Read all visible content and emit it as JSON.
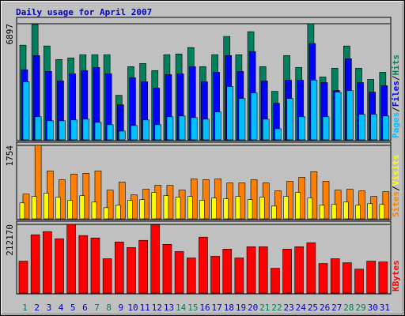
{
  "chart_data": [
    {
      "type": "bar",
      "title": "Daily usage for April 2007",
      "title_color": "#0000c0",
      "ylim": [
        0,
        6897
      ],
      "yticks": [
        6897
      ],
      "legend_separator": "/",
      "series": [
        {
          "name": "Hits",
          "color": "#00805c",
          "values": [
            5622,
            6850,
            5574,
            4771,
            4866,
            5055,
            5055,
            5055,
            2645,
            4346,
            4535,
            4110,
            5055,
            5102,
            5480,
            4346,
            5055,
            6141,
            5055,
            6425,
            4346,
            2882,
            5007,
            4299,
            6897,
            3732,
            4252,
            5574,
            4252,
            3590,
            4015
          ]
        },
        {
          "name": "Files",
          "color": "#0000ff",
          "values": [
            4157,
            5007,
            4063,
            3496,
            3921,
            4110,
            4299,
            3921,
            2079,
            3685,
            3449,
            3071,
            3874,
            3921,
            4346,
            3449,
            4015,
            5007,
            4063,
            5244,
            3496,
            2173,
            3543,
            3543,
            5716,
            3401,
            2929,
            4818,
            3401,
            2834,
            3212
          ]
        },
        {
          "name": "Pages",
          "color": "#00c0ff",
          "values": [
            3449,
            1370,
            1134,
            1134,
            1181,
            1228,
            1039,
            898,
            520,
            850,
            1181,
            898,
            1370,
            1417,
            1323,
            1228,
            1653,
            3165,
            2456,
            2787,
            1228,
            661,
            2456,
            1370,
            3543,
            1370,
            2834,
            2929,
            1512,
            1512,
            1417
          ]
        }
      ]
    },
    {
      "type": "bar",
      "ylim": [
        0,
        1754
      ],
      "yticks": [
        1754
      ],
      "legend_separator": "/",
      "series": [
        {
          "name": "Visits",
          "color": "#ff8000",
          "legend_color": "#ffff00",
          "values": [
            591,
            1754,
            1144,
            934,
            1068,
            1087,
            1144,
            687,
            877,
            572,
            706,
            801,
            801,
            687,
            953,
            934,
            953,
            858,
            858,
            934,
            858,
            667,
            896,
            992,
            1125,
            896,
            687,
            706,
            667,
            534,
            648
          ]
        },
        {
          "name": "Sites",
          "color": "#ffff00",
          "legend_color": "#ff8000",
          "values": [
            381,
            534,
            610,
            515,
            439,
            553,
            400,
            267,
            324,
            439,
            458,
            629,
            553,
            515,
            534,
            439,
            496,
            477,
            534,
            458,
            515,
            305,
            534,
            629,
            496,
            324,
            343,
            400,
            324,
            362,
            343
          ]
        }
      ]
    },
    {
      "type": "bar",
      "ylim": [
        0,
        212170
      ],
      "yticks": [
        212170
      ],
      "categories": [
        "1",
        "2",
        "3",
        "4",
        "5",
        "6",
        "7",
        "8",
        "9",
        "10",
        "11",
        "12",
        "13",
        "14",
        "15",
        "16",
        "17",
        "18",
        "19",
        "20",
        "21",
        "22",
        "23",
        "24",
        "25",
        "26",
        "27",
        "28",
        "29",
        "30",
        "31"
      ],
      "category_colors": [
        "#00805c",
        "#0000c0",
        "#0000c0",
        "#0000c0",
        "#0000c0",
        "#0000c0",
        "#00805c",
        "#00805c",
        "#0000c0",
        "#0000c0",
        "#0000c0",
        "#0000c0",
        "#0000c0",
        "#00805c",
        "#00805c",
        "#0000c0",
        "#0000c0",
        "#0000c0",
        "#0000c0",
        "#0000c0",
        "#00805c",
        "#00805c",
        "#0000c0",
        "#0000c0",
        "#0000c0",
        "#0000c0",
        "#0000c0",
        "#00805c",
        "#00805c",
        "#0000c0",
        "#0000c0"
      ],
      "series": [
        {
          "name": "KBytes",
          "color": "#ff0000",
          "values": [
            98680,
            180091,
            189959,
            167756,
            212170,
            177624,
            170223,
            106081,
            157888,
            140619,
            162822,
            211000,
            150487,
            128284,
            108548,
            172690,
            113482,
            135685,
            108548,
            143086,
            143086,
            76477,
            135685,
            143086,
            155421,
            91279,
            106081,
            93746,
            74010,
            98680,
            96213
          ]
        }
      ]
    }
  ]
}
